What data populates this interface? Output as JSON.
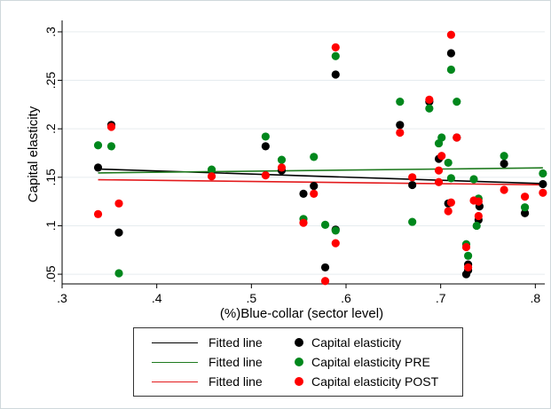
{
  "chart_data": {
    "type": "scatter",
    "xlabel": "(%)Blue-collar (sector level)",
    "ylabel": "Capital elasticity",
    "xlim": [
      0.3,
      0.81
    ],
    "ylim": [
      0.04,
      0.31
    ],
    "xticks": [
      0.3,
      0.4,
      0.5,
      0.6,
      0.7,
      0.8
    ],
    "xtick_labels": [
      ".3",
      ".4",
      ".5",
      ".6",
      ".7",
      ".8"
    ],
    "yticks": [
      0.05,
      0.1,
      0.15,
      0.2,
      0.25,
      0.3
    ],
    "ytick_labels": [
      ".05",
      ".1",
      ".15",
      ".2",
      ".25",
      ".3"
    ],
    "grid": "horizontal",
    "legend_position": "bottom",
    "series": [
      {
        "name": "Capital elasticity",
        "color": "#000000",
        "points": [
          [
            0.338,
            0.16
          ],
          [
            0.352,
            0.204
          ],
          [
            0.36,
            0.093
          ],
          [
            0.515,
            0.182
          ],
          [
            0.532,
            0.157
          ],
          [
            0.555,
            0.133
          ],
          [
            0.566,
            0.141
          ],
          [
            0.578,
            0.057
          ],
          [
            0.589,
            0.256
          ],
          [
            0.589,
            0.096
          ],
          [
            0.657,
            0.204
          ],
          [
            0.67,
            0.142
          ],
          [
            0.688,
            0.228
          ],
          [
            0.698,
            0.169
          ],
          [
            0.708,
            0.123
          ],
          [
            0.711,
            0.278
          ],
          [
            0.717,
            0.191
          ],
          [
            0.727,
            0.05
          ],
          [
            0.729,
            0.06
          ],
          [
            0.729,
            0.054
          ],
          [
            0.74,
            0.106
          ],
          [
            0.741,
            0.12
          ],
          [
            0.767,
            0.164
          ],
          [
            0.789,
            0.113
          ],
          [
            0.808,
            0.143
          ]
        ]
      },
      {
        "name": "Capital elasticity PRE",
        "color": "#00871c",
        "points": [
          [
            0.338,
            0.183
          ],
          [
            0.352,
            0.182
          ],
          [
            0.36,
            0.051
          ],
          [
            0.458,
            0.158
          ],
          [
            0.515,
            0.192
          ],
          [
            0.532,
            0.168
          ],
          [
            0.555,
            0.107
          ],
          [
            0.566,
            0.171
          ],
          [
            0.578,
            0.101
          ],
          [
            0.589,
            0.275
          ],
          [
            0.589,
            0.095
          ],
          [
            0.657,
            0.228
          ],
          [
            0.67,
            0.104
          ],
          [
            0.688,
            0.221
          ],
          [
            0.698,
            0.185
          ],
          [
            0.701,
            0.191
          ],
          [
            0.708,
            0.165
          ],
          [
            0.711,
            0.261
          ],
          [
            0.711,
            0.149
          ],
          [
            0.717,
            0.228
          ],
          [
            0.727,
            0.081
          ],
          [
            0.729,
            0.069
          ],
          [
            0.735,
            0.148
          ],
          [
            0.738,
            0.1
          ],
          [
            0.74,
            0.128
          ],
          [
            0.767,
            0.172
          ],
          [
            0.789,
            0.119
          ],
          [
            0.808,
            0.154
          ]
        ]
      },
      {
        "name": "Capital elasticity POST",
        "color": "#ff0000",
        "points": [
          [
            0.338,
            0.112
          ],
          [
            0.352,
            0.202
          ],
          [
            0.36,
            0.123
          ],
          [
            0.458,
            0.151
          ],
          [
            0.515,
            0.152
          ],
          [
            0.532,
            0.16
          ],
          [
            0.555,
            0.103
          ],
          [
            0.566,
            0.133
          ],
          [
            0.578,
            0.043
          ],
          [
            0.589,
            0.284
          ],
          [
            0.589,
            0.082
          ],
          [
            0.657,
            0.196
          ],
          [
            0.67,
            0.15
          ],
          [
            0.688,
            0.23
          ],
          [
            0.698,
            0.157
          ],
          [
            0.698,
            0.145
          ],
          [
            0.701,
            0.172
          ],
          [
            0.708,
            0.115
          ],
          [
            0.711,
            0.297
          ],
          [
            0.711,
            0.124
          ],
          [
            0.717,
            0.191
          ],
          [
            0.727,
            0.078
          ],
          [
            0.729,
            0.057
          ],
          [
            0.735,
            0.126
          ],
          [
            0.74,
            0.11
          ],
          [
            0.74,
            0.125
          ],
          [
            0.767,
            0.137
          ],
          [
            0.789,
            0.13
          ],
          [
            0.808,
            0.134
          ]
        ]
      }
    ],
    "fitted_lines": [
      {
        "series": "Capital elasticity",
        "color": "#000000",
        "x": [
          0.338,
          0.808
        ],
        "y": [
          0.1585,
          0.1435
        ]
      },
      {
        "series": "Capital elasticity PRE",
        "color": "#1f7a1f",
        "x": [
          0.338,
          0.808
        ],
        "y": [
          0.1545,
          0.1597
        ]
      },
      {
        "series": "Capital elasticity POST",
        "color": "#e31a1c",
        "x": [
          0.338,
          0.808
        ],
        "y": [
          0.1475,
          0.1422
        ]
      }
    ]
  },
  "legend": {
    "items": [
      {
        "kind": "line",
        "label": "Fitted line",
        "color": "#000000"
      },
      {
        "kind": "dot",
        "label": "Capital elasticity",
        "color": "#000000"
      },
      {
        "kind": "line",
        "label": "Fitted line",
        "color": "#1f7a1f"
      },
      {
        "kind": "dot",
        "label": "Capital elasticity PRE",
        "color": "#00871c"
      },
      {
        "kind": "line",
        "label": "Fitted line",
        "color": "#e31a1c"
      },
      {
        "kind": "dot",
        "label": "Capital elasticity POST",
        "color": "#ff0000"
      }
    ]
  }
}
